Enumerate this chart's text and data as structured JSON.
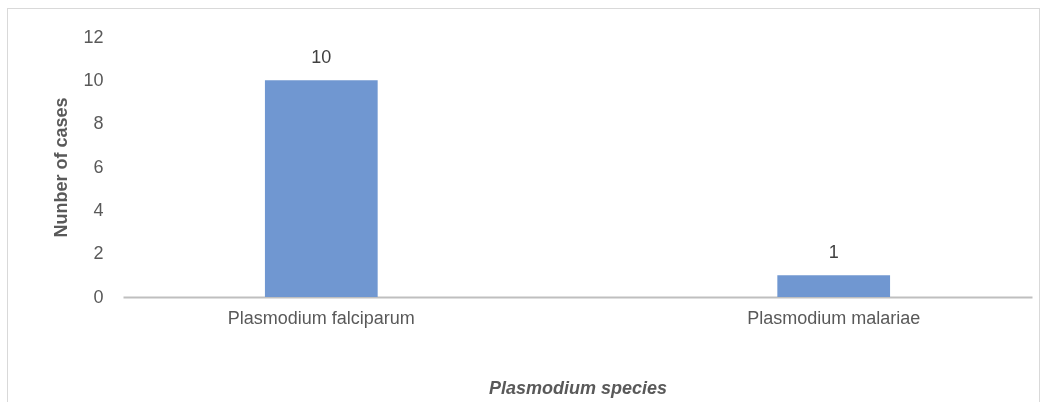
{
  "chart_data": {
    "type": "bar",
    "xlabel": "Plasmodium species",
    "ylabel": "Nunber of cases",
    "categories": [
      "Plasmodium falciparum",
      "Plasmodium malariae"
    ],
    "values": [
      10,
      1
    ],
    "color": "#7097d1",
    "ylim": [
      0,
      12
    ],
    "yticks": [
      0,
      2,
      4,
      6,
      8,
      10,
      12
    ],
    "grid": false,
    "data_labels": true
  }
}
